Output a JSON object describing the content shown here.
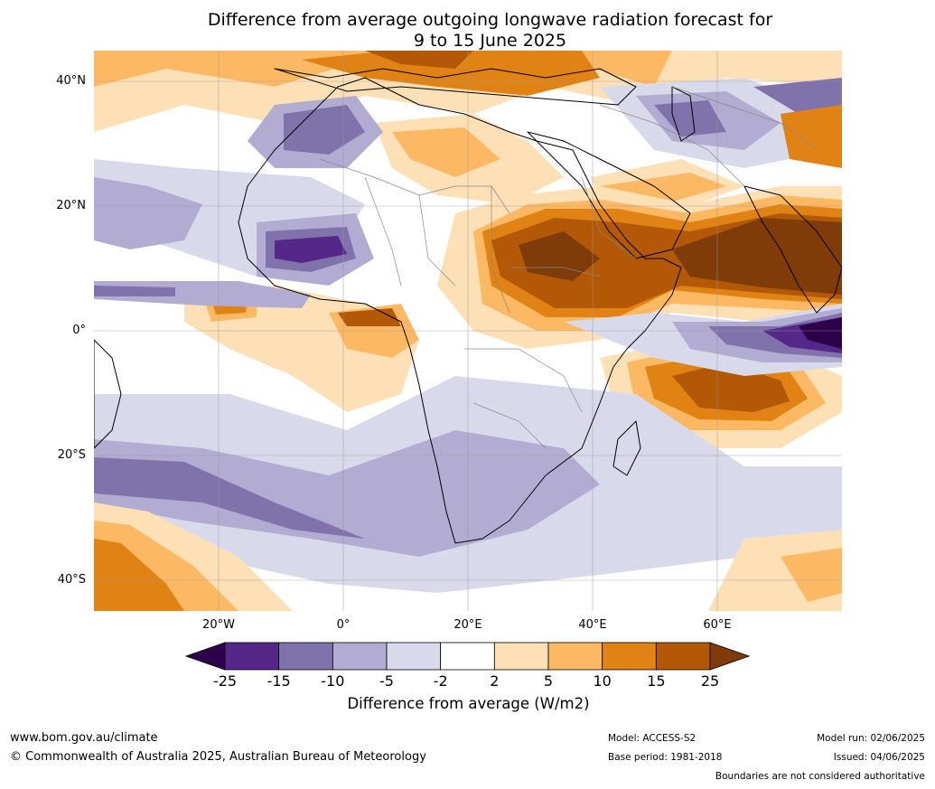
{
  "title": {
    "line1": "Difference from average outgoing longwave radiation forecast for",
    "line2": "9 to 15 June 2025"
  },
  "map": {
    "lat_labels": [
      "40°N",
      "20°N",
      "0°",
      "20°S",
      "40°S"
    ],
    "lon_labels": [
      "20°W",
      "0°",
      "20°E",
      "40°E",
      "60°E"
    ]
  },
  "colorbar": {
    "ticks": [
      "-25",
      "-15",
      "-10",
      "-5",
      "-2",
      "2",
      "5",
      "10",
      "15",
      "25"
    ],
    "label": "Difference from average (W/m2)",
    "colors": [
      "#2d004b",
      "#542788",
      "#8073ac",
      "#b2abd2",
      "#d8daeb",
      "#ffffff",
      "#fee0b6",
      "#fdb863",
      "#e08214",
      "#b35806",
      "#7f3b08"
    ]
  },
  "footer": {
    "website": "www.bom.gov.au/climate",
    "copyright": "© Commonwealth of Australia 2025, Australian Bureau of Meteorology",
    "model": "Model: ACCESS-S2",
    "base_period": "Base period: 1981-2018",
    "model_run": "Model run: 02/06/2025",
    "issued": "Issued: 04/06/2025",
    "disclaimer": "Boundaries are not considered authoritative"
  }
}
